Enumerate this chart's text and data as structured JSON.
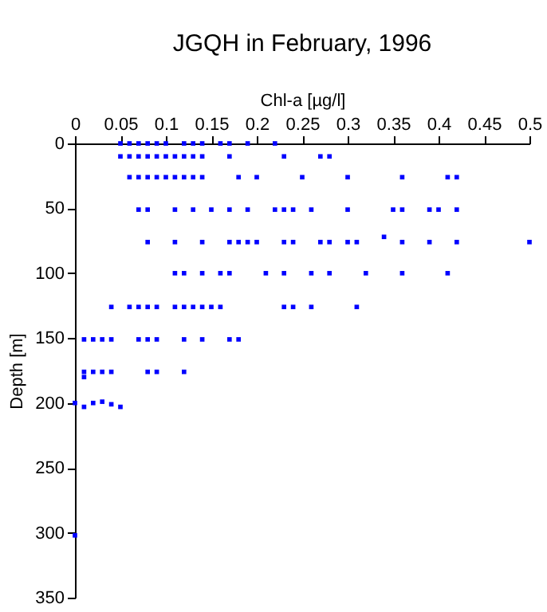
{
  "chart_data": {
    "type": "scatter",
    "title": "JGQH in February, 1996",
    "xlabel": "Chl-a [µg/l]",
    "ylabel": "Depth [m]",
    "xlim": [
      0,
      0.5
    ],
    "xticks": [
      0,
      0.05,
      0.1,
      0.15,
      0.2,
      0.25,
      0.3,
      0.35,
      0.4,
      0.45,
      0.5
    ],
    "ylim": [
      350,
      0
    ],
    "yticks": [
      0,
      50,
      100,
      150,
      200,
      250,
      300,
      350
    ],
    "marker": "square",
    "grid": false,
    "legend": false,
    "series": [
      {
        "color": "#0000ff",
        "x": [
          0.05,
          0.06,
          0.07,
          0.08,
          0.09,
          0.1,
          0.12,
          0.13,
          0.14,
          0.16,
          0.17,
          0.19,
          0.22,
          0.05,
          0.06,
          0.07,
          0.08,
          0.09,
          0.1,
          0.11,
          0.12,
          0.13,
          0.14,
          0.17,
          0.23,
          0.27,
          0.28,
          0.06,
          0.07,
          0.08,
          0.09,
          0.1,
          0.11,
          0.12,
          0.13,
          0.14,
          0.18,
          0.2,
          0.25,
          0.3,
          0.36,
          0.41,
          0.42,
          0.07,
          0.08,
          0.11,
          0.13,
          0.15,
          0.17,
          0.19,
          0.22,
          0.23,
          0.24,
          0.26,
          0.3,
          0.35,
          0.36,
          0.39,
          0.4,
          0.42,
          0.34,
          0.08,
          0.11,
          0.14,
          0.17,
          0.18,
          0.19,
          0.2,
          0.23,
          0.24,
          0.27,
          0.28,
          0.3,
          0.31,
          0.36,
          0.39,
          0.42,
          0.5,
          0.11,
          0.12,
          0.14,
          0.16,
          0.17,
          0.21,
          0.23,
          0.26,
          0.28,
          0.32,
          0.36,
          0.41,
          0.04,
          0.06,
          0.07,
          0.08,
          0.09,
          0.11,
          0.12,
          0.13,
          0.14,
          0.15,
          0.16,
          0.23,
          0.24,
          0.26,
          0.31,
          0.01,
          0.02,
          0.03,
          0.04,
          0.07,
          0.08,
          0.09,
          0.12,
          0.14,
          0.17,
          0.18,
          0.01,
          0.01,
          0.02,
          0.03,
          0.04,
          0.08,
          0.09,
          0.12,
          0,
          0.01,
          0.02,
          0.03,
          0.04,
          0.05,
          0
        ],
        "values": [
          0,
          0,
          0,
          0,
          0,
          0,
          0,
          0,
          0,
          0,
          0,
          0,
          0,
          10,
          10,
          10,
          10,
          10,
          10,
          10,
          10,
          10,
          10,
          10,
          10,
          10,
          10,
          26,
          26,
          26,
          26,
          26,
          26,
          26,
          26,
          26,
          26,
          26,
          26,
          26,
          26,
          26,
          26,
          51,
          51,
          51,
          51,
          51,
          51,
          51,
          51,
          51,
          51,
          51,
          51,
          51,
          51,
          51,
          51,
          51,
          72,
          76,
          76,
          76,
          76,
          76,
          76,
          76,
          76,
          76,
          76,
          76,
          76,
          76,
          76,
          76,
          76,
          76,
          100,
          100,
          100,
          100,
          100,
          100,
          100,
          100,
          100,
          100,
          100,
          100,
          126,
          126,
          126,
          126,
          126,
          126,
          126,
          126,
          126,
          126,
          126,
          126,
          126,
          126,
          126,
          151,
          151,
          151,
          151,
          151,
          151,
          151,
          151,
          151,
          151,
          151,
          180,
          176,
          176,
          176,
          176,
          176,
          176,
          176,
          200,
          203,
          200,
          199,
          201,
          203,
          302
        ]
      }
    ]
  }
}
